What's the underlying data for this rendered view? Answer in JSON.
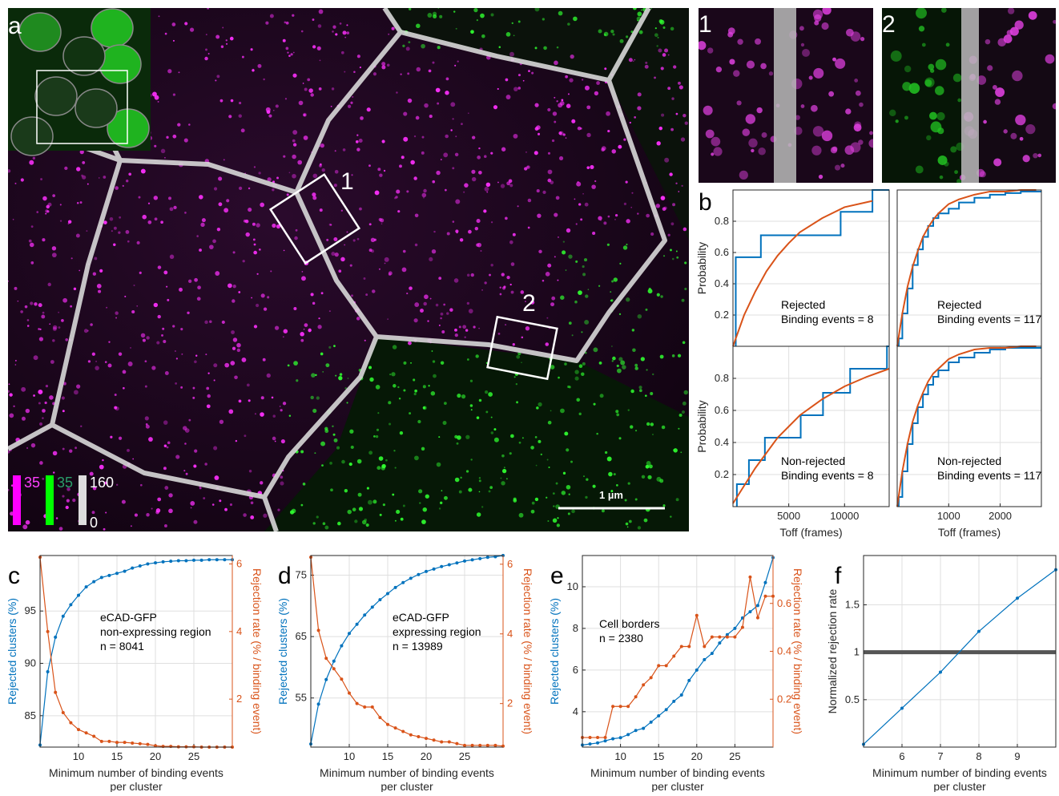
{
  "image_panel": {
    "label": "a",
    "roi_labels": [
      "1",
      "2"
    ],
    "zoom_labels": [
      "1",
      "2"
    ],
    "colorbar": {
      "magenta_max": "35",
      "green_max": "35",
      "gray_max": "160",
      "gray_min": "0"
    },
    "scale_bar": "1 µm"
  },
  "chart_data": [
    {
      "type": "line",
      "label": "b",
      "ylabel": "Probability",
      "annotation": [
        "Rejected",
        "Binding events = 8"
      ],
      "xlim": [
        0,
        14000
      ],
      "xticks": [],
      "ylim": [
        0,
        1
      ],
      "yticks": [
        0.2,
        0.4,
        0.6,
        0.8
      ],
      "grid": true,
      "series": [
        {
          "color": "#0072bd",
          "step": true,
          "x": [
            250,
            2500,
            9650,
            12500
          ],
          "values": [
            0.57,
            0.71,
            0.86,
            1.0
          ]
        },
        {
          "color": "#d95319",
          "x": [
            0,
            1000,
            2000,
            3000,
            4000,
            5000,
            6000,
            8000,
            10000,
            12500
          ],
          "values": [
            0,
            0.2,
            0.35,
            0.48,
            0.58,
            0.66,
            0.73,
            0.82,
            0.89,
            0.93
          ]
        }
      ]
    },
    {
      "type": "line",
      "annotation": [
        "Rejected",
        "Binding events = 117"
      ],
      "xlim": [
        0,
        2800
      ],
      "xticks": [],
      "ylim": [
        0,
        1
      ],
      "yticks": [],
      "grid": true,
      "gridy": [
        0.2,
        0.4,
        0.6,
        0.8
      ],
      "series": [
        {
          "color": "#0072bd",
          "step": true,
          "x": [
            30,
            100,
            200,
            300,
            400,
            500,
            600,
            700,
            800,
            1000,
            1200,
            1500,
            1800,
            2100,
            2400
          ],
          "values": [
            0.05,
            0.21,
            0.37,
            0.52,
            0.62,
            0.7,
            0.77,
            0.82,
            0.85,
            0.88,
            0.92,
            0.95,
            0.97,
            0.98,
            0.99
          ]
        },
        {
          "color": "#d95319",
          "x": [
            0,
            100,
            200,
            300,
            400,
            500,
            600,
            700,
            800,
            1000,
            1200,
            1500,
            1800,
            2100,
            2400,
            2700
          ],
          "values": [
            0,
            0.21,
            0.38,
            0.51,
            0.61,
            0.7,
            0.76,
            0.81,
            0.85,
            0.91,
            0.94,
            0.97,
            0.99,
            0.99,
            1.0,
            1.0
          ]
        }
      ]
    },
    {
      "type": "line",
      "ylabel": "Probability",
      "xlabel": [
        "Toff (frames)"
      ],
      "annotation": [
        "Non-rejected",
        "Binding events = 8"
      ],
      "xlim": [
        0,
        14000
      ],
      "xticks": [
        5000,
        10000
      ],
      "ylim": [
        0,
        1
      ],
      "yticks": [
        0.2,
        0.4,
        0.6,
        0.8
      ],
      "grid": true,
      "series": [
        {
          "color": "#0072bd",
          "step": true,
          "x": [
            350,
            1430,
            2860,
            6070,
            8070,
            10500,
            13800
          ],
          "values": [
            0.14,
            0.29,
            0.43,
            0.57,
            0.71,
            0.86,
            1.0
          ]
        },
        {
          "color": "#d95319",
          "x": [
            0,
            1000,
            2000,
            4000,
            6000,
            8000,
            10000,
            12000,
            14000
          ],
          "values": [
            0.02,
            0.13,
            0.24,
            0.43,
            0.57,
            0.67,
            0.75,
            0.81,
            0.86
          ]
        }
      ]
    },
    {
      "type": "line",
      "xlabel": [
        "Toff (frames)"
      ],
      "annotation": [
        "Non-rejected",
        "Binding events = 117"
      ],
      "xlim": [
        0,
        2800
      ],
      "xticks": [
        1000,
        2000
      ],
      "ylim": [
        0,
        1
      ],
      "yticks": [],
      "grid": true,
      "gridy": [
        0.2,
        0.4,
        0.6,
        0.8
      ],
      "series": [
        {
          "color": "#0072bd",
          "step": true,
          "x": [
            30,
            100,
            200,
            300,
            400,
            500,
            600,
            700,
            800,
            1000,
            1200,
            1500,
            1800,
            2100,
            2400
          ],
          "values": [
            0.06,
            0.22,
            0.39,
            0.52,
            0.62,
            0.7,
            0.76,
            0.81,
            0.85,
            0.9,
            0.93,
            0.96,
            0.98,
            0.99,
            0.99
          ]
        },
        {
          "color": "#d95319",
          "x": [
            0,
            100,
            200,
            300,
            400,
            500,
            600,
            700,
            800,
            1000,
            1200,
            1500,
            1800,
            2100,
            2400,
            2700
          ],
          "values": [
            0,
            0.22,
            0.39,
            0.53,
            0.63,
            0.71,
            0.78,
            0.83,
            0.86,
            0.92,
            0.95,
            0.98,
            0.99,
            0.99,
            1.0,
            1.0
          ]
        }
      ]
    },
    {
      "type": "line",
      "label": "c",
      "xlabel": [
        "Minimum number of binding events",
        "per cluster"
      ],
      "ylabel": "Rejected clusters (%)",
      "y2label": "Rejection rate (% / binding event)",
      "annotation": [
        "eCAD-GFP",
        "non-expressing region",
        "n = 8041"
      ],
      "x": [
        5,
        6,
        7,
        8,
        9,
        10,
        11,
        12,
        13,
        14,
        15,
        16,
        17,
        18,
        19,
        20,
        21,
        22,
        23,
        24,
        25,
        26,
        27,
        28,
        29,
        30
      ],
      "xlim": [
        5,
        30
      ],
      "xticks": [
        10,
        15,
        20,
        25
      ],
      "ylim": [
        82,
        100.3
      ],
      "yticks": [
        85,
        90,
        95
      ],
      "y2lim": [
        0.58,
        6.25
      ],
      "y2ticks": [
        2,
        4,
        6
      ],
      "grid": true,
      "markers": true,
      "series": [
        {
          "color": "#0072bd",
          "values": [
            82.2,
            89.2,
            92.5,
            94.5,
            95.6,
            96.5,
            97.3,
            97.8,
            98.2,
            98.4,
            98.6,
            98.8,
            99.1,
            99.3,
            99.5,
            99.6,
            99.7,
            99.75,
            99.8,
            99.8,
            99.85,
            99.85,
            99.9,
            99.9,
            99.9,
            99.9
          ]
        },
        {
          "color": "#d95319",
          "axis": "y2",
          "values": [
            6.2,
            4.0,
            2.2,
            1.6,
            1.3,
            1.1,
            1.0,
            0.9,
            0.75,
            0.75,
            0.72,
            0.72,
            0.7,
            0.68,
            0.66,
            0.62,
            0.6,
            0.6,
            0.59,
            0.59,
            0.59,
            0.58,
            0.58,
            0.58,
            0.58,
            0.58
          ]
        }
      ]
    },
    {
      "type": "line",
      "label": "d",
      "xlabel": [
        "Minimum number of binding events",
        "per cluster"
      ],
      "ylabel": "Rejected clusters (%)",
      "y2label": "Rejection rate (% / binding event)",
      "annotation": [
        "eCAD-GFP",
        "expressing region",
        "n = 13989"
      ],
      "x": [
        5,
        6,
        7,
        8,
        9,
        10,
        11,
        12,
        13,
        14,
        15,
        16,
        17,
        18,
        19,
        20,
        21,
        22,
        23,
        24,
        25,
        26,
        27,
        28,
        29,
        30
      ],
      "xlim": [
        5,
        30
      ],
      "xticks": [
        10,
        15,
        20,
        25
      ],
      "ylim": [
        47,
        78.2
      ],
      "yticks": [
        55,
        65,
        75
      ],
      "y2lim": [
        0.75,
        6.25
      ],
      "y2ticks": [
        2,
        4,
        6
      ],
      "grid": true,
      "markers": true,
      "series": [
        {
          "color": "#0072bd",
          "values": [
            47.5,
            54,
            58,
            61,
            63.5,
            65.5,
            67,
            68.5,
            69.8,
            71,
            72,
            73,
            73.8,
            74.5,
            75.1,
            75.6,
            76,
            76.4,
            76.7,
            77,
            77.3,
            77.5,
            77.7,
            77.9,
            78.0,
            78.2
          ]
        },
        {
          "color": "#d95319",
          "axis": "y2",
          "values": [
            6.2,
            4.1,
            3.3,
            3.0,
            2.7,
            2.3,
            2.0,
            1.9,
            1.9,
            1.6,
            1.4,
            1.3,
            1.2,
            1.1,
            1.05,
            1.0,
            0.95,
            0.9,
            0.9,
            0.85,
            0.8,
            0.8,
            0.8,
            0.8,
            0.8,
            0.78
          ]
        }
      ]
    },
    {
      "type": "line",
      "label": "e",
      "xlabel": [
        "Minimum number of binding events",
        "per cluster"
      ],
      "ylabel": "Rejected clusters (%)",
      "y2label": "Rejection rate (% / binding event)",
      "annotation": [
        "Cell borders",
        "n = 2380"
      ],
      "x": [
        5,
        6,
        7,
        8,
        9,
        10,
        11,
        12,
        13,
        14,
        15,
        16,
        17,
        18,
        19,
        20,
        21,
        22,
        23,
        24,
        25,
        26,
        27,
        28,
        29,
        30
      ],
      "xlim": [
        5,
        30
      ],
      "xticks": [
        10,
        15,
        20,
        25
      ],
      "ylim": [
        2.3,
        11.5
      ],
      "yticks": [
        4,
        6,
        8,
        10
      ],
      "y2lim": [
        0,
        0.8
      ],
      "y2ticks": [
        0.2,
        0.4,
        0.6
      ],
      "grid": true,
      "markers": true,
      "series": [
        {
          "color": "#0072bd",
          "values": [
            2.4,
            2.45,
            2.5,
            2.6,
            2.7,
            2.75,
            2.9,
            3.1,
            3.2,
            3.5,
            3.8,
            4.1,
            4.5,
            4.8,
            5.5,
            6.0,
            6.5,
            6.8,
            7.3,
            7.7,
            8.0,
            8.5,
            8.8,
            9.1,
            10.2,
            11.4
          ]
        },
        {
          "color": "#d95319",
          "axis": "y2",
          "values": [
            0.04,
            0.04,
            0.04,
            0.04,
            0.17,
            0.17,
            0.17,
            0.21,
            0.26,
            0.29,
            0.34,
            0.34,
            0.38,
            0.42,
            0.42,
            0.55,
            0.42,
            0.46,
            0.46,
            0.46,
            0.46,
            0.5,
            0.71,
            0.54,
            0.63,
            0.63
          ]
        }
      ]
    },
    {
      "type": "line",
      "label": "f",
      "xlabel": [
        "Minimum number of binding events",
        "per cluster"
      ],
      "ylabel": "Normalized rejection rate",
      "reference_line": 1,
      "x": [
        5,
        6,
        7,
        8,
        9,
        10
      ],
      "xlim": [
        5,
        10
      ],
      "xticks": [
        6,
        7,
        8,
        9
      ],
      "ylim": [
        0,
        2.02
      ],
      "yticks": [
        0.5,
        1,
        1.5
      ],
      "grid": true,
      "markers": true,
      "series": [
        {
          "color": "#0072bd",
          "values": [
            0.03,
            0.41,
            0.79,
            1.22,
            1.57,
            1.87
          ]
        }
      ]
    }
  ]
}
